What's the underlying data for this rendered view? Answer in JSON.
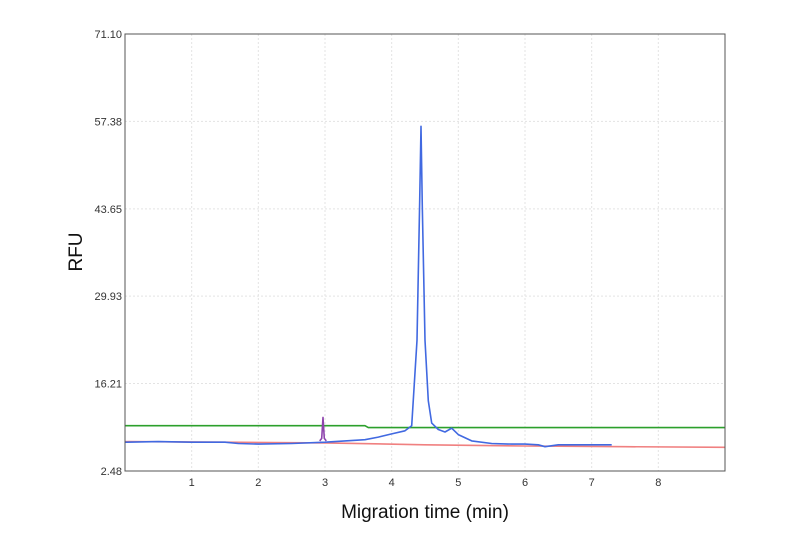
{
  "chart_data": {
    "type": "line",
    "title": "",
    "xlabel": "Migration time (min)",
    "ylabel": "RFU",
    "xlim": [
      0,
      9
    ],
    "ylim": [
      2.48,
      71.1
    ],
    "x_ticks": [
      1,
      2,
      3,
      4,
      5,
      6,
      7,
      8
    ],
    "y_ticks": [
      2.48,
      16.21,
      29.93,
      43.65,
      57.38,
      71.1
    ],
    "x_tick_labels": [
      "1",
      "2",
      "3",
      "4",
      "5",
      "6",
      "7",
      "8"
    ],
    "y_tick_labels": [
      "2.48",
      "16.21",
      "29.93",
      "43.65",
      "57.38",
      "71.10"
    ],
    "grid": true,
    "legend": "none",
    "series": [
      {
        "color": "#2ca02c",
        "x": [
          0,
          3.6,
          3.65,
          9
        ],
        "y": [
          9.6,
          9.6,
          9.3,
          9.3
        ]
      },
      {
        "color": "#f08080",
        "x": [
          0,
          1.5,
          3.0,
          4.5,
          6.0,
          7.5,
          9
        ],
        "y": [
          7.1,
          7.0,
          6.9,
          6.6,
          6.4,
          6.3,
          6.2
        ]
      },
      {
        "color": "#8e44ad",
        "x": [
          2.92,
          2.95,
          2.97,
          2.99,
          3.02
        ],
        "y": [
          7.2,
          7.6,
          10.9,
          7.6,
          7.2
        ]
      },
      {
        "color": "#4169e1",
        "x": [
          0,
          0.5,
          1.0,
          1.5,
          1.7,
          2.0,
          2.5,
          3.0,
          3.3,
          3.6,
          3.8,
          4.0,
          4.2,
          4.3,
          4.38,
          4.42,
          4.44,
          4.46,
          4.5,
          4.55,
          4.6,
          4.7,
          4.8,
          4.9,
          5.0,
          5.2,
          5.5,
          5.8,
          6.0,
          6.2,
          6.3,
          6.5,
          7.0,
          7.3
        ],
        "y": [
          7.0,
          7.1,
          7.0,
          7.0,
          6.8,
          6.7,
          6.8,
          7.0,
          7.2,
          7.4,
          7.8,
          8.3,
          8.8,
          9.6,
          23.0,
          45.0,
          56.6,
          44.0,
          23.0,
          13.5,
          10.0,
          9.0,
          8.6,
          9.2,
          8.2,
          7.2,
          6.8,
          6.7,
          6.7,
          6.6,
          6.3,
          6.6,
          6.6,
          6.6
        ]
      }
    ]
  }
}
